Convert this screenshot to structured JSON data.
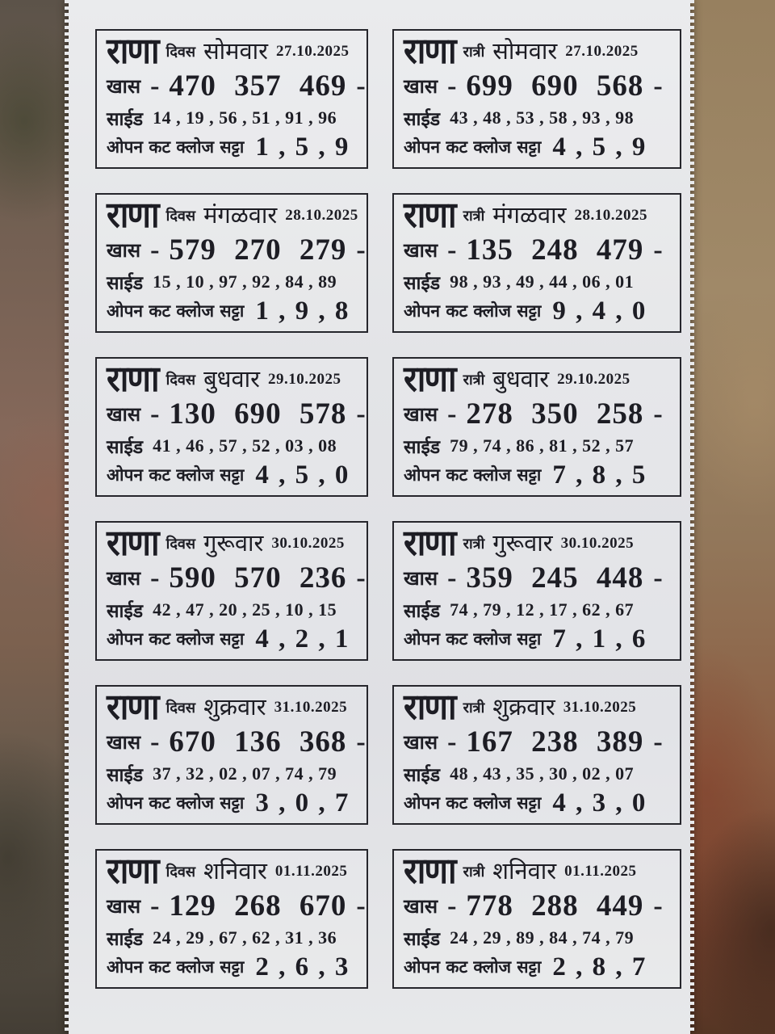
{
  "labels": {
    "brand": "राणा",
    "khaas": "खास",
    "dash": "-",
    "side": "साईड",
    "satta": "ओपन कट क्लोज सट्टा"
  },
  "cards": [
    {
      "session": "दिवस",
      "weekday": "सोमवार",
      "date": "27.10.2025",
      "khaas": "470 357 469",
      "side": "14 , 19 , 56 , 51 , 91 , 96",
      "satta": "1 , 5 , 9"
    },
    {
      "session": "रात्री",
      "weekday": "सोमवार",
      "date": "27.10.2025",
      "khaas": "699 690 568",
      "side": "43 , 48 , 53 , 58 , 93 , 98",
      "satta": "4 , 5 , 9"
    },
    {
      "session": "दिवस",
      "weekday": "मंगळवार",
      "date": "28.10.2025",
      "khaas": "579 270 279",
      "side": "15 , 10 , 97 , 92 , 84 , 89",
      "satta": "1 , 9 , 8"
    },
    {
      "session": "रात्री",
      "weekday": "मंगळवार",
      "date": "28.10.2025",
      "khaas": "135 248 479",
      "side": "98 , 93 , 49 , 44 , 06 , 01",
      "satta": "9 , 4 , 0"
    },
    {
      "session": "दिवस",
      "weekday": "बुधवार",
      "date": "29.10.2025",
      "khaas": "130 690 578",
      "side": "41 , 46 , 57 , 52 , 03 , 08",
      "satta": "4 , 5 , 0"
    },
    {
      "session": "रात्री",
      "weekday": "बुधवार",
      "date": "29.10.2025",
      "khaas": "278 350 258",
      "side": "79 , 74 , 86 , 81 , 52 , 57",
      "satta": "7 , 8 , 5"
    },
    {
      "session": "दिवस",
      "weekday": "गुरूवार",
      "date": "30.10.2025",
      "khaas": "590 570 236",
      "side": "42 , 47 , 20 , 25 , 10 , 15",
      "satta": "4 , 2 , 1"
    },
    {
      "session": "रात्री",
      "weekday": "गुरूवार",
      "date": "30.10.2025",
      "khaas": "359 245 448",
      "side": "74 , 79 , 12 , 17 , 62 , 67",
      "satta": "7 , 1 , 6"
    },
    {
      "session": "दिवस",
      "weekday": "शुक्रवार",
      "date": "31.10.2025",
      "khaas": "670 136 368",
      "side": "37 , 32 , 02 , 07 , 74 , 79",
      "satta": "3 , 0 , 7"
    },
    {
      "session": "रात्री",
      "weekday": "शुक्रवार",
      "date": "31.10.2025",
      "khaas": "167 238 389",
      "side": "48 , 43 , 35 , 30 , 02 , 07",
      "satta": "4 , 3 , 0"
    },
    {
      "session": "दिवस",
      "weekday": "शनिवार",
      "date": "01.11.2025",
      "khaas": "129 268 670",
      "side": "24 , 29 , 67 , 62 , 31 , 36",
      "satta": "2 , 6 , 3"
    },
    {
      "session": "रात्री",
      "weekday": "शनिवार",
      "date": "01.11.2025",
      "khaas": "778 288 449",
      "side": "24 , 29 , 89 , 84 , 74 , 79",
      "satta": "2 , 8 , 7"
    }
  ]
}
